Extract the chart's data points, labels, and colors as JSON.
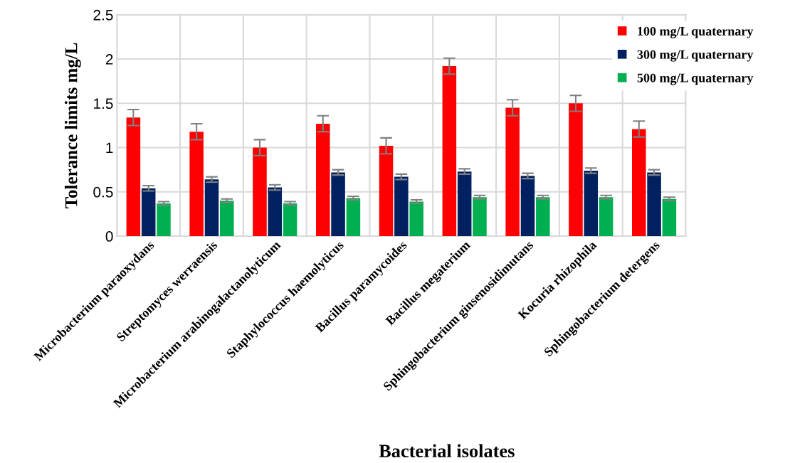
{
  "chart_data": {
    "type": "bar",
    "xlabel": "Bacterial isolates",
    "ylabel": "Tolerance limits mg/L",
    "categories": [
      "Microbacterium paraoxydans",
      "Streptomyces werraensis",
      "Microbacterium arabinogalactanolyticum",
      "Staphylococcus haemolyticus",
      "Bacillus paramycoides",
      "Bacillus megaterium",
      "Sphingobacterium ginsenosidimutans",
      "Kocuria rhizophila",
      "Sphingobacterium detergens"
    ],
    "series": [
      {
        "name": "100 mg/L quaternary",
        "color": "#ff0000",
        "values": [
          1.34,
          1.18,
          1.0,
          1.27,
          1.02,
          1.92,
          1.45,
          1.5,
          1.21
        ],
        "errors": [
          0.09,
          0.09,
          0.09,
          0.09,
          0.09,
          0.09,
          0.09,
          0.09,
          0.09
        ]
      },
      {
        "name": "300 mg/L quaternary",
        "color": "#002060",
        "values": [
          0.54,
          0.64,
          0.55,
          0.72,
          0.67,
          0.73,
          0.68,
          0.74,
          0.72
        ],
        "errors": [
          0.03,
          0.03,
          0.03,
          0.03,
          0.03,
          0.03,
          0.03,
          0.03,
          0.03
        ]
      },
      {
        "name": "500 mg/L quaternary",
        "color": "#00b050",
        "values": [
          0.37,
          0.4,
          0.37,
          0.43,
          0.39,
          0.44,
          0.44,
          0.44,
          0.42
        ],
        "errors": [
          0.02,
          0.02,
          0.02,
          0.02,
          0.02,
          0.02,
          0.02,
          0.02,
          0.02
        ]
      }
    ],
    "ylim": [
      0,
      2.5
    ],
    "yticks": [
      0,
      0.5,
      1,
      1.5,
      2,
      2.5
    ],
    "grid": true,
    "legend": "top right"
  }
}
